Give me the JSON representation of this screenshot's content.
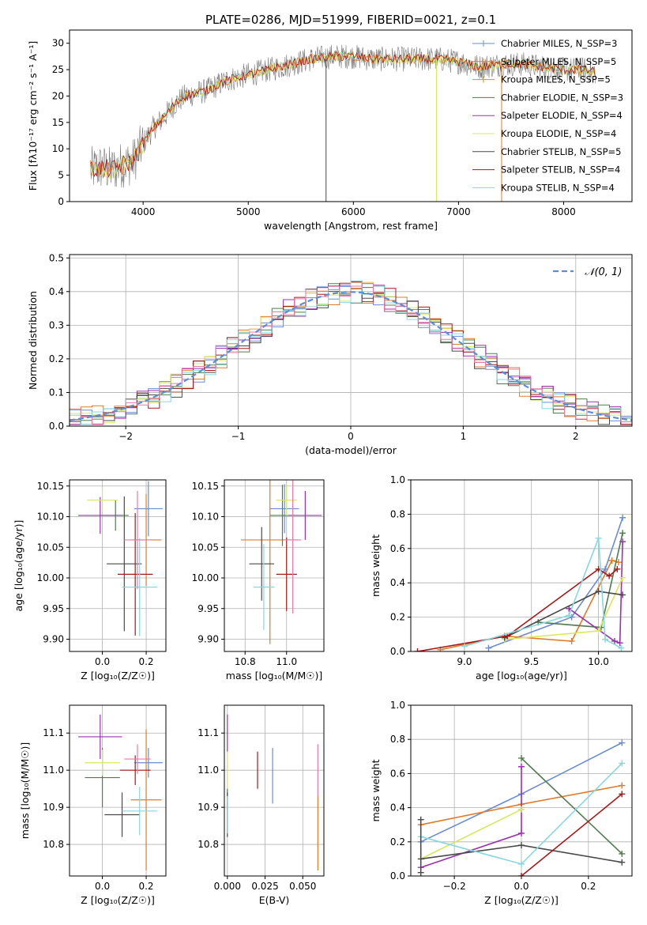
{
  "title": "PLATE=0286, MJD=51999, FIBERID=0021, z=0.1",
  "colors": {
    "Chabrier MILES": "#6a8bd6",
    "Salpeter MILES": "#e07b2a",
    "Kroupa MILES": "#c8a000",
    "Chabrier ELODIE": "#4f7d4f",
    "Salpeter ELODIE": "#9b30b0",
    "Kroupa ELODIE": "#d9e85a",
    "Chabrier STELIB": "#4a4a4a",
    "Salpeter STELIB": "#a81818",
    "Kroupa STELIB": "#86d8df",
    "pink": "#e87aa8",
    "normal": "#5a8fd8"
  },
  "chart_data": [
    {
      "id": "spectrum",
      "type": "line",
      "xlabel": "wavelength [Angstrom, rest frame]",
      "ylabel": "Flux [fλ10⁻¹⁷ erg cm⁻² s⁻¹ A⁻¹]",
      "xlim": [
        3300,
        8650
      ],
      "ylim": [
        0,
        32.5
      ],
      "xticks": [
        "4000",
        "5000",
        "6000",
        "7000",
        "8000"
      ],
      "yticks": [
        "0",
        "5",
        "10",
        "15",
        "20",
        "25",
        "30"
      ],
      "legend": [
        "Chabrier MILES, N_SSP=3",
        "Salpeter MILES, N_SSP=5",
        "Kroupa MILES, N_SSP=5",
        "Chabrier ELODIE, N_SSP=3",
        "Salpeter ELODIE, N_SSP=4",
        "Kroupa ELODIE, N_SSP=4",
        "Chabrier STELIB, N_SSP=5",
        "Salpeter STELIB, N_SSP=4",
        "Kroupa STELIB, N_SSP=4"
      ],
      "continuum": {
        "x": [
          3500,
          3600,
          3700,
          3800,
          3900,
          4000,
          4100,
          4200,
          4300,
          4400,
          4500,
          4600,
          4700,
          4800,
          4900,
          5000,
          5200,
          5400,
          5600,
          5800,
          6000,
          6200,
          6400,
          6600,
          6800,
          7000,
          7200,
          7400,
          7600,
          7800,
          8000,
          8200,
          8300
        ],
        "y": [
          6,
          6.5,
          6,
          7,
          7.5,
          11,
          14,
          16,
          18.5,
          20,
          20.5,
          21,
          22,
          23,
          23.5,
          24,
          25,
          26,
          27,
          27.5,
          27.5,
          27,
          27,
          27,
          27,
          26.5,
          25.5,
          26,
          26,
          25.5,
          25,
          25,
          24.5
        ]
      },
      "spikes": [
        {
          "x": 5740,
          "y": 0,
          "color": "Chabrier STELIB"
        },
        {
          "x": 6790,
          "y": 0,
          "color": "Kroupa ELODIE"
        },
        {
          "x": 7410,
          "y": 0,
          "color": "Salpeter MILES"
        }
      ]
    },
    {
      "id": "residuals",
      "type": "bar",
      "xlabel": "(data-model)/error",
      "ylabel": "Normed distribution",
      "xlim": [
        -2.5,
        2.5
      ],
      "ylim": [
        0,
        0.51
      ],
      "xticks": [
        "−2",
        "−1",
        "0",
        "1",
        "2"
      ],
      "yticks": [
        "0.0",
        "0.1",
        "0.2",
        "0.3",
        "0.4",
        "0.5"
      ],
      "legend": [
        "𝒩(0, 1)"
      ],
      "bin_width": 0.1,
      "bins_start": -2.5
    },
    {
      "id": "age_vs_Z",
      "type": "scatter",
      "xlabel": "Z [log₁₀(Z/Z☉)]",
      "ylabel": "age  [log₁₀(age/yr)]",
      "xlim": [
        -0.15,
        0.29
      ],
      "ylim": [
        9.88,
        10.16
      ],
      "xticks": [
        "0.0",
        "0.2"
      ],
      "yticks": [
        "9.90",
        "9.95",
        "10.00",
        "10.05",
        "10.10",
        "10.15"
      ],
      "points": [
        {
          "x": 0.21,
          "y": 10.113,
          "xe": 0.065,
          "ye": 0.045,
          "color": "Chabrier MILES"
        },
        {
          "x": 0.2,
          "y": 10.062,
          "xe": 0.07,
          "ye": 0.075,
          "color": "Salpeter MILES"
        },
        {
          "x": 0.06,
          "y": 10.102,
          "xe": 0.06,
          "ye": 0.025,
          "color": "Chabrier ELODIE"
        },
        {
          "x": -0.01,
          "y": 10.102,
          "xe": 0.1,
          "ye": 0.03,
          "color": "Salpeter ELODIE"
        },
        {
          "x": 0.0,
          "y": 10.127,
          "xe": 0.07,
          "ye": 0.02,
          "color": "Kroupa ELODIE"
        },
        {
          "x": 0.1,
          "y": 10.023,
          "xe": 0.08,
          "ye": 0.11,
          "color": "Chabrier STELIB"
        },
        {
          "x": 0.15,
          "y": 10.006,
          "xe": 0.08,
          "ye": 0.1,
          "color": "Salpeter STELIB"
        },
        {
          "x": 0.17,
          "y": 9.985,
          "xe": 0.08,
          "ye": 0.08,
          "color": "Kroupa STELIB"
        },
        {
          "x": 0.16,
          "y": 10.062,
          "xe": 0.06,
          "ye": 0.08,
          "color": "pink"
        }
      ]
    },
    {
      "id": "age_vs_mass",
      "type": "scatter",
      "xlabel": "mass [log₁₀(M/M☉)]",
      "xlim": [
        10.7,
        11.18
      ],
      "ylim": [
        9.88,
        10.16
      ],
      "xticks": [
        "10.8",
        "11.0"
      ],
      "yticks": [
        "9.90",
        "9.95",
        "10.00",
        "10.05",
        "10.10",
        "10.15"
      ],
      "points": [
        {
          "x": 10.99,
          "y": 10.113,
          "xe": 0.07,
          "ye": 0.04,
          "color": "Chabrier MILES"
        },
        {
          "x": 10.92,
          "y": 10.062,
          "xe": 0.14,
          "ye": 0.17,
          "color": "Salpeter MILES"
        },
        {
          "x": 10.98,
          "y": 10.102,
          "xe": 0.06,
          "ye": 0.05,
          "color": "Chabrier ELODIE"
        },
        {
          "x": 11.09,
          "y": 10.102,
          "xe": 0.08,
          "ye": 0.04,
          "color": "Salpeter ELODIE"
        },
        {
          "x": 11.0,
          "y": 10.127,
          "xe": 0.05,
          "ye": 0.025,
          "color": "Kroupa ELODIE"
        },
        {
          "x": 10.88,
          "y": 10.023,
          "xe": 0.06,
          "ye": 0.06,
          "color": "Chabrier STELIB"
        },
        {
          "x": 11.0,
          "y": 10.006,
          "xe": 0.05,
          "ye": 0.06,
          "color": "Salpeter STELIB"
        },
        {
          "x": 10.89,
          "y": 9.985,
          "xe": 0.05,
          "ye": 0.07,
          "color": "Kroupa STELIB"
        },
        {
          "x": 11.03,
          "y": 10.062,
          "xe": 0.04,
          "ye": 0.12,
          "color": "pink"
        }
      ]
    },
    {
      "id": "weight_vs_age",
      "type": "line",
      "xlabel": "age  [log₁₀(age/yr)]",
      "ylabel": "mass weight",
      "xlim": [
        8.6,
        10.25
      ],
      "ylim": [
        0,
        1.0
      ],
      "xticks": [
        "9.0",
        "9.5",
        "10.0"
      ],
      "yticks": [
        "0.0",
        "0.2",
        "0.4",
        "0.6",
        "0.8",
        "1.0"
      ],
      "series": [
        {
          "color": "Chabrier MILES",
          "x": [
            9.18,
            9.8,
            10.05,
            10.18
          ],
          "y": [
            0.02,
            0.2,
            0.48,
            0.78
          ]
        },
        {
          "color": "Salpeter MILES",
          "x": [
            8.82,
            9.3,
            9.8,
            10.1,
            10.15
          ],
          "y": [
            0.01,
            0.09,
            0.06,
            0.53,
            0.52
          ]
        },
        {
          "color": "Chabrier ELODIE",
          "x": [
            9.55,
            10.02,
            10.18
          ],
          "y": [
            0.17,
            0.14,
            0.69
          ]
        },
        {
          "color": "Salpeter ELODIE",
          "x": [
            9.78,
            10.12,
            10.16,
            10.18
          ],
          "y": [
            0.25,
            0.06,
            0.05,
            0.64
          ]
        },
        {
          "color": "Kroupa ELODIE",
          "x": [
            9.3,
            10.0,
            10.18
          ],
          "y": [
            0.07,
            0.12,
            0.43
          ]
        },
        {
          "color": "Chabrier STELIB",
          "x": [
            9.3,
            10.0,
            10.18
          ],
          "y": [
            0.08,
            0.35,
            0.33
          ]
        },
        {
          "color": "Salpeter STELIB",
          "x": [
            8.65,
            9.32,
            10.0,
            10.08,
            10.14
          ],
          "y": [
            0.0,
            0.09,
            0.48,
            0.44,
            0.48
          ]
        },
        {
          "color": "Kroupa STELIB",
          "x": [
            9.0,
            9.78,
            10.0,
            10.05,
            10.17
          ],
          "y": [
            0.03,
            0.21,
            0.66,
            0.07,
            0.02
          ]
        }
      ]
    },
    {
      "id": "mass_vs_Z",
      "type": "scatter",
      "xlabel": "Z [log₁₀(Z/Z☉)]",
      "ylabel": "mass [log₁₀(M/M☉)]",
      "xlim": [
        -0.15,
        0.29
      ],
      "ylim": [
        10.715,
        11.175
      ],
      "xticks": [
        "0.0",
        "0.2"
      ],
      "yticks": [
        "10.8",
        "10.9",
        "11.0",
        "11.1"
      ],
      "points": [
        {
          "x": 0.21,
          "y": 11.02,
          "xe": 0.065,
          "ye": 0.04,
          "color": "Chabrier MILES"
        },
        {
          "x": 0.2,
          "y": 10.92,
          "xe": 0.07,
          "ye": 0.19,
          "color": "Salpeter MILES"
        },
        {
          "x": 0.0,
          "y": 10.98,
          "xe": 0.08,
          "ye": 0.08,
          "color": "Chabrier ELODIE"
        },
        {
          "x": -0.01,
          "y": 11.09,
          "xe": 0.1,
          "ye": 0.06,
          "color": "Salpeter ELODIE"
        },
        {
          "x": 0.0,
          "y": 11.02,
          "xe": 0.08,
          "ye": 0.035,
          "color": "Kroupa ELODIE"
        },
        {
          "x": 0.09,
          "y": 10.88,
          "xe": 0.08,
          "ye": 0.06,
          "color": "Chabrier STELIB"
        },
        {
          "x": 0.15,
          "y": 11.0,
          "xe": 0.07,
          "ye": 0.04,
          "color": "Salpeter STELIB"
        },
        {
          "x": 0.17,
          "y": 10.89,
          "xe": 0.08,
          "ye": 0.065,
          "color": "Kroupa STELIB"
        },
        {
          "x": 0.16,
          "y": 11.03,
          "xe": 0.06,
          "ye": 0.04,
          "color": "pink"
        }
      ]
    },
    {
      "id": "mass_vs_ebv",
      "type": "scatter",
      "xlabel": "E(B-V)",
      "xlim": [
        -0.002,
        0.064
      ],
      "ylim": [
        10.715,
        11.175
      ],
      "xticks": [
        "0.000",
        "0.025",
        "0.050"
      ],
      "yticks": [
        "10.8",
        "10.9",
        "11.0",
        "11.1"
      ],
      "points": [
        {
          "x": 0.03,
          "y": 10.985,
          "xe": 0,
          "ye": 0.075,
          "color": "Chabrier MILES"
        },
        {
          "x": 0.06,
          "y": 10.83,
          "xe": 0,
          "ye": 0.1,
          "color": "Salpeter MILES"
        },
        {
          "x": 0.0,
          "y": 10.89,
          "xe": 0,
          "ye": 0.06,
          "color": "Chabrier ELODIE"
        },
        {
          "x": 0.0,
          "y": 11.1,
          "xe": 0,
          "ye": 0.05,
          "color": "Salpeter ELODIE"
        },
        {
          "x": 0.0,
          "y": 11.0,
          "xe": 0,
          "ye": 0.05,
          "color": "Kroupa ELODIE"
        },
        {
          "x": 0.0,
          "y": 10.88,
          "xe": 0,
          "ye": 0.06,
          "color": "Chabrier STELIB"
        },
        {
          "x": 0.02,
          "y": 11.0,
          "xe": 0,
          "ye": 0.05,
          "color": "Salpeter STELIB"
        },
        {
          "x": 0.0,
          "y": 10.88,
          "xe": 0,
          "ye": 0.05,
          "color": "Kroupa STELIB"
        },
        {
          "x": 0.06,
          "y": 11.0,
          "xe": 0,
          "ye": 0.07,
          "color": "pink"
        }
      ]
    },
    {
      "id": "weight_vs_Z",
      "type": "line",
      "xlabel": "Z [log₁₀(Z/Z☉)]",
      "ylabel": "mass weight",
      "xlim": [
        -0.33,
        0.33
      ],
      "ylim": [
        0,
        1.0
      ],
      "xticks": [
        "−0.2",
        "0.0",
        "0.2"
      ],
      "yticks": [
        "0.0",
        "0.2",
        "0.4",
        "0.6",
        "0.8",
        "1.0"
      ],
      "series": [
        {
          "color": "Chabrier MILES",
          "x": [
            -0.3,
            0.0,
            0.3
          ],
          "y": [
            0.2,
            0.48,
            0.78
          ]
        },
        {
          "color": "Salpeter MILES",
          "x": [
            -0.3,
            0.0,
            0.3
          ],
          "y": [
            0.3,
            0.42,
            0.53
          ]
        },
        {
          "color": "Chabrier ELODIE",
          "x": [
            0.0,
            0.3
          ],
          "y": [
            0.69,
            0.13
          ]
        },
        {
          "color": "Salpeter ELODIE",
          "x": [
            -0.3,
            0.0,
            0.0
          ],
          "y": [
            0.05,
            0.25,
            0.64
          ]
        },
        {
          "color": "Kroupa ELODIE",
          "x": [
            -0.3,
            0.0
          ],
          "y": [
            0.1,
            0.39
          ]
        },
        {
          "color": "Chabrier STELIB",
          "x": [
            -0.3,
            0.0,
            0.3
          ],
          "y": [
            0.1,
            0.18,
            0.08
          ]
        },
        {
          "color": "Salpeter STELIB",
          "x": [
            0.0,
            0.3
          ],
          "y": [
            0.0,
            0.48
          ]
        },
        {
          "color": "Kroupa STELIB",
          "x": [
            -0.3,
            0.0,
            0.3
          ],
          "y": [
            0.23,
            0.07,
            0.66
          ]
        },
        {
          "color": "Chabrier STELIB",
          "x": [
            -0.3,
            -0.3
          ],
          "y": [
            0.02,
            0.33
          ]
        }
      ]
    }
  ]
}
